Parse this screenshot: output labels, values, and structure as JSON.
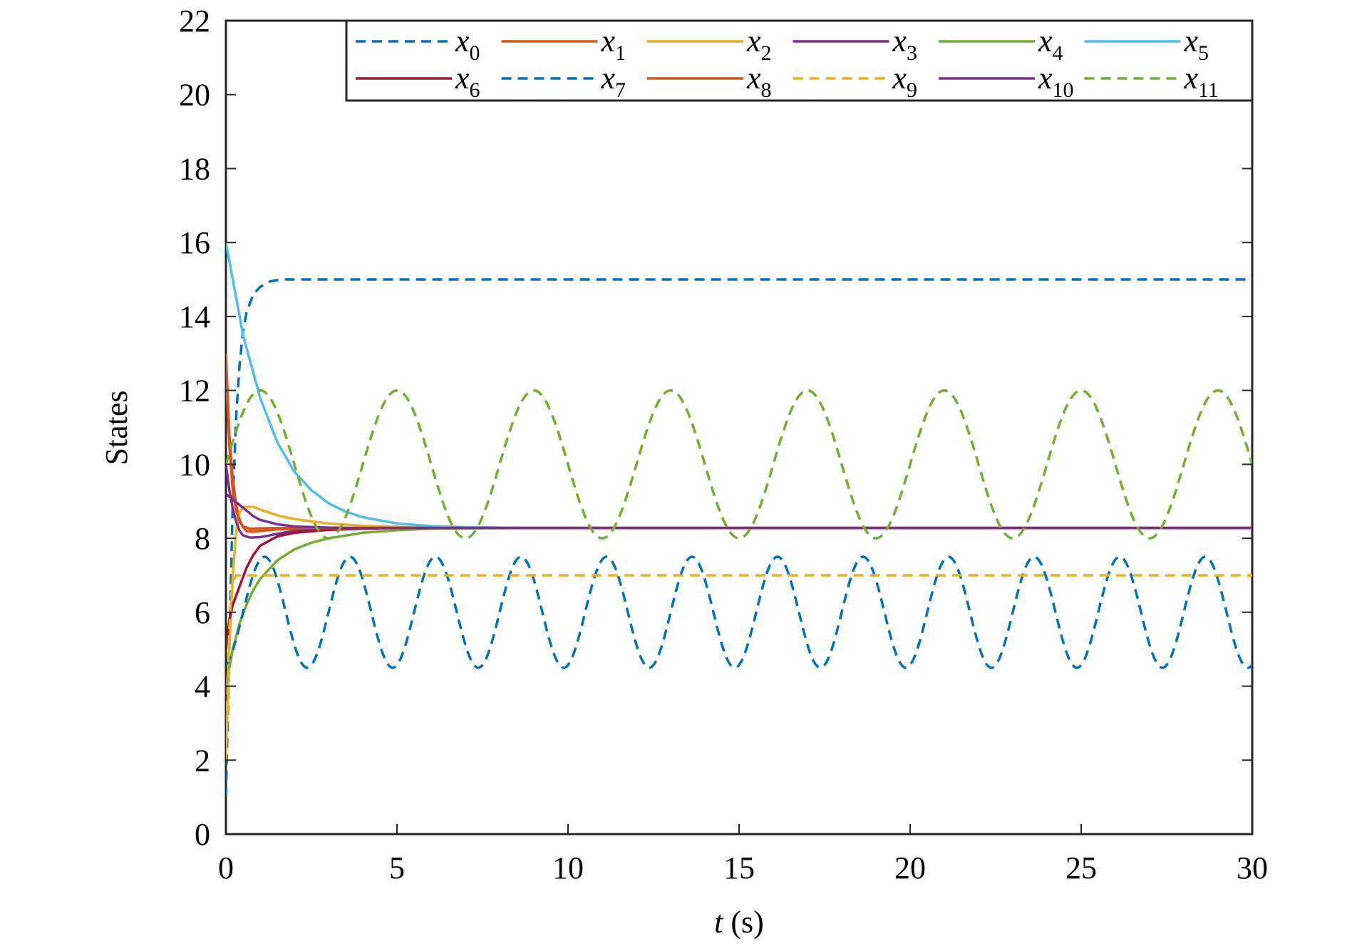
{
  "chart_data": {
    "type": "line",
    "xlabel_var": "t",
    "xlabel_unit": " (s)",
    "ylabel": "States",
    "xlim": [
      0,
      30
    ],
    "ylim": [
      0,
      22
    ],
    "xticks": [
      0,
      5,
      10,
      15,
      20,
      25,
      30
    ],
    "yticks": [
      0,
      2,
      4,
      6,
      8,
      10,
      12,
      14,
      16,
      18,
      20,
      22
    ],
    "grid": false,
    "legend_position": "top-right",
    "series": [
      {
        "name": "x",
        "sub": "0",
        "color": "#0072BD",
        "dash": true,
        "points": [
          [
            0,
            1
          ],
          [
            0.1,
            5
          ],
          [
            0.2,
            9
          ],
          [
            0.3,
            11.3
          ],
          [
            0.4,
            12.7
          ],
          [
            0.5,
            13.6
          ],
          [
            0.6,
            14.1
          ],
          [
            0.8,
            14.6
          ],
          [
            1.0,
            14.8
          ],
          [
            1.3,
            14.95
          ],
          [
            1.6,
            15
          ],
          [
            3,
            15
          ],
          [
            30,
            15
          ]
        ]
      },
      {
        "name": "x",
        "sub": "1",
        "color": "#D95319",
        "dash": false,
        "points": [
          [
            0,
            13
          ],
          [
            0.1,
            10.8
          ],
          [
            0.2,
            9.6
          ],
          [
            0.3,
            8.9
          ],
          [
            0.4,
            8.5
          ],
          [
            0.5,
            8.3
          ],
          [
            0.6,
            8.2
          ],
          [
            0.8,
            8.18
          ],
          [
            1.0,
            8.2
          ],
          [
            1.5,
            8.24
          ],
          [
            2.5,
            8.27
          ],
          [
            4,
            8.28
          ],
          [
            30,
            8.28
          ]
        ]
      },
      {
        "name": "x",
        "sub": "2",
        "color": "#EDB120",
        "dash": false,
        "points": [
          [
            0,
            2
          ],
          [
            0.1,
            5
          ],
          [
            0.2,
            7
          ],
          [
            0.3,
            8.2
          ],
          [
            0.4,
            8.7
          ],
          [
            0.5,
            8.85
          ],
          [
            0.8,
            8.85
          ],
          [
            1.0,
            8.78
          ],
          [
            1.5,
            8.62
          ],
          [
            2,
            8.52
          ],
          [
            3,
            8.4
          ],
          [
            4,
            8.34
          ],
          [
            5,
            8.31
          ],
          [
            6,
            8.29
          ],
          [
            8,
            8.28
          ],
          [
            30,
            8.28
          ]
        ]
      },
      {
        "name": "x",
        "sub": "3",
        "color": "#7E2F8E",
        "dash": false,
        "points": [
          [
            0,
            10
          ],
          [
            0.1,
            9.3
          ],
          [
            0.2,
            8.8
          ],
          [
            0.3,
            8.45
          ],
          [
            0.4,
            8.2
          ],
          [
            0.5,
            8.08
          ],
          [
            0.7,
            8.02
          ],
          [
            1.0,
            8.03
          ],
          [
            1.5,
            8.12
          ],
          [
            2,
            8.2
          ],
          [
            3,
            8.26
          ],
          [
            4,
            8.28
          ],
          [
            30,
            8.28
          ]
        ]
      },
      {
        "name": "x",
        "sub": "4",
        "color": "#77AC30",
        "dash": false,
        "points": [
          [
            0,
            4
          ],
          [
            0.2,
            5
          ],
          [
            0.4,
            5.7
          ],
          [
            0.6,
            6.2
          ],
          [
            0.8,
            6.6
          ],
          [
            1,
            6.9
          ],
          [
            1.5,
            7.4
          ],
          [
            2,
            7.7
          ],
          [
            2.5,
            7.88
          ],
          [
            3,
            8.0
          ],
          [
            4,
            8.15
          ],
          [
            5,
            8.22
          ],
          [
            6,
            8.26
          ],
          [
            7,
            8.27
          ],
          [
            9,
            8.28
          ],
          [
            30,
            8.28
          ]
        ]
      },
      {
        "name": "x",
        "sub": "5",
        "color": "#4DBEEE",
        "dash": false,
        "points": [
          [
            0,
            16
          ],
          [
            0.5,
            13.5
          ],
          [
            1,
            11.8
          ],
          [
            1.5,
            10.6
          ],
          [
            2,
            9.8
          ],
          [
            2.5,
            9.3
          ],
          [
            3,
            8.95
          ],
          [
            3.5,
            8.72
          ],
          [
            4,
            8.57
          ],
          [
            5,
            8.4
          ],
          [
            6,
            8.33
          ],
          [
            7,
            8.3
          ],
          [
            8,
            8.29
          ],
          [
            10,
            8.28
          ],
          [
            30,
            8.28
          ]
        ]
      },
      {
        "name": "x",
        "sub": "6",
        "color": "#A2142F",
        "dash": false,
        "points": [
          [
            0,
            5
          ],
          [
            0.1,
            5.8
          ],
          [
            0.2,
            6.2
          ],
          [
            0.4,
            6.7
          ],
          [
            0.6,
            7.2
          ],
          [
            0.8,
            7.55
          ],
          [
            1,
            7.8
          ],
          [
            1.5,
            8.05
          ],
          [
            2,
            8.15
          ],
          [
            3,
            8.23
          ],
          [
            4,
            8.26
          ],
          [
            5,
            8.28
          ],
          [
            30,
            8.28
          ]
        ]
      },
      {
        "name": "x",
        "sub": "7",
        "color": "#0072BD",
        "dash": true,
        "fn": "sin",
        "offset": 6,
        "amp": 1.5,
        "period": 2.5,
        "x0": 0.5
      },
      {
        "name": "x",
        "sub": "8",
        "color": "#D95319",
        "dash": false,
        "points": [
          [
            0,
            12.6
          ],
          [
            0.1,
            10.5
          ],
          [
            0.2,
            9.3
          ],
          [
            0.3,
            8.75
          ],
          [
            0.4,
            8.45
          ],
          [
            0.5,
            8.32
          ],
          [
            0.7,
            8.26
          ],
          [
            1,
            8.27
          ],
          [
            2,
            8.28
          ],
          [
            30,
            8.28
          ]
        ]
      },
      {
        "name": "x",
        "sub": "9",
        "color": "#EDB120",
        "dash": true,
        "points": [
          [
            0,
            2
          ],
          [
            0.05,
            4
          ],
          [
            0.1,
            5.5
          ],
          [
            0.15,
            6.4
          ],
          [
            0.2,
            6.8
          ],
          [
            0.3,
            7
          ],
          [
            30,
            7
          ]
        ]
      },
      {
        "name": "x",
        "sub": "10",
        "color": "#7E2F8E",
        "dash": false,
        "points": [
          [
            0,
            9.2
          ],
          [
            0.2,
            9.05
          ],
          [
            0.4,
            8.9
          ],
          [
            0.6,
            8.75
          ],
          [
            0.8,
            8.6
          ],
          [
            1,
            8.5
          ],
          [
            1.5,
            8.38
          ],
          [
            2,
            8.32
          ],
          [
            3,
            8.29
          ],
          [
            4,
            8.28
          ],
          [
            30,
            8.28
          ]
        ]
      },
      {
        "name": "x",
        "sub": "11",
        "color": "#77AC30",
        "dash": true,
        "fn": "sin",
        "offset": 10,
        "amp": 2,
        "period": 4,
        "x0": 0
      }
    ]
  }
}
